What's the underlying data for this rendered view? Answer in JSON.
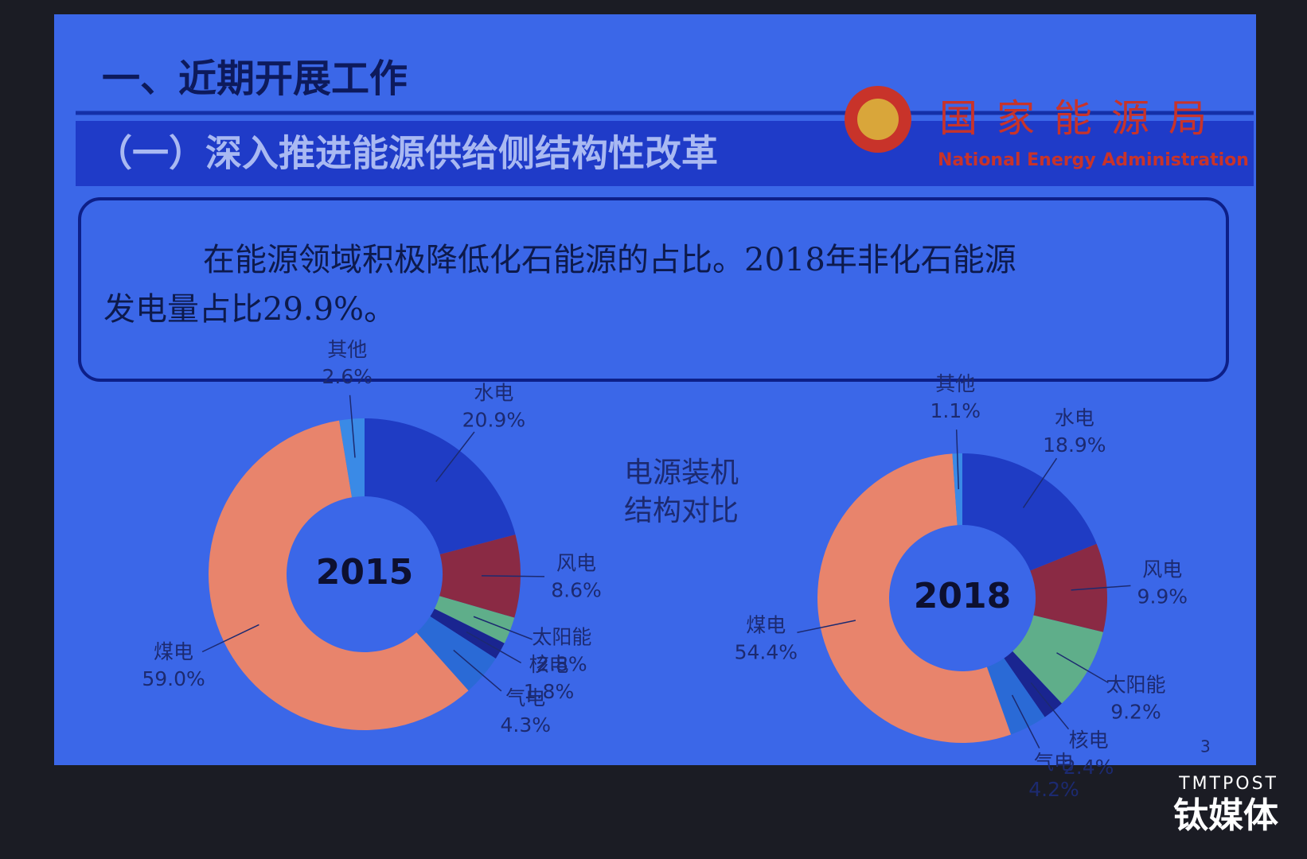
{
  "header": {
    "section": "一、近期开展工作",
    "subtitle": "（一）深入推进能源供给侧结构性改革",
    "logo_cn": "国家能源局",
    "logo_en": "National Energy Administration"
  },
  "paragraph": [
    "在能源领域积极降低化石能源的占比。2018年非化石能源",
    "发电量占比29.9%。"
  ],
  "center_label": [
    "电源装机",
    "结构对比"
  ],
  "page_number": "3",
  "watermark": {
    "brand": "TMTPOST",
    "name": "钛媒体"
  },
  "chart_data": [
    {
      "type": "pie",
      "title": "2015",
      "categories": [
        "水电",
        "风电",
        "太阳能",
        "核电",
        "气电",
        "煤电",
        "其他"
      ],
      "values": [
        20.9,
        8.6,
        2.8,
        1.8,
        4.3,
        59.0,
        2.6
      ],
      "value_labels": [
        "20.9%",
        "8.6%",
        "2.8%",
        "1.8%",
        "4.3%",
        "59.0%",
        "2.6%"
      ],
      "colors": [
        "#1f3cc4",
        "#8a2a44",
        "#5fae8a",
        "#1a2590",
        "#2a6ad6",
        "#e8846c",
        "#3a8ae6"
      ]
    },
    {
      "type": "pie",
      "title": "2018",
      "categories": [
        "水电",
        "风电",
        "太阳能",
        "核电",
        "气电",
        "煤电",
        "其他"
      ],
      "values": [
        18.9,
        9.9,
        9.2,
        2.4,
        4.2,
        54.4,
        1.1
      ],
      "value_labels": [
        "18.9%",
        "9.9%",
        "9.2%",
        "2.4%",
        "4.2%",
        "54.4%",
        "1.1%"
      ],
      "colors": [
        "#1f3cc4",
        "#8a2a44",
        "#5fae8a",
        "#1a2590",
        "#2a6ad6",
        "#e8846c",
        "#3a8ae6"
      ]
    }
  ]
}
